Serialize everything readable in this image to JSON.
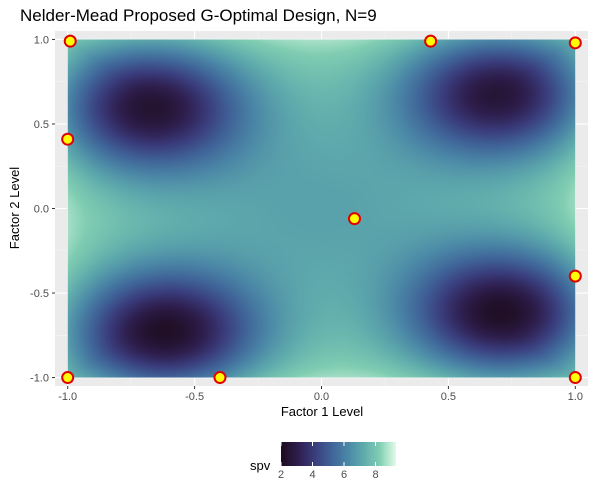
{
  "chart_data": {
    "type": "heatmap",
    "title": "Nelder-Mead Proposed G-Optimal Design, N=9",
    "xlabel": "Factor 1 Level",
    "ylabel": "Factor 2 Level",
    "xlim": [
      -1.05,
      1.05
    ],
    "ylim": [
      -1.05,
      1.05
    ],
    "x_ticks": [
      -1.0,
      -0.5,
      0.0,
      0.5,
      1.0
    ],
    "y_ticks": [
      -1.0,
      -0.5,
      0.0,
      0.5,
      1.0
    ],
    "x_tick_labels": [
      "-1.0",
      "-0.5",
      "0.0",
      "0.5",
      "1.0"
    ],
    "y_tick_labels": [
      "-1.0",
      "-0.5",
      "0.0",
      "0.5",
      "1.0"
    ],
    "grid": true,
    "legend": {
      "title": "spv",
      "placement": "bottom",
      "range": [
        2,
        9.3
      ],
      "ticks": [
        2,
        4,
        6,
        8
      ],
      "tick_labels": [
        "2",
        "4",
        "6",
        "8"
      ]
    },
    "colormap": [
      "#1e0c1f",
      "#2e1e4d",
      "#3a3c7c",
      "#3f6197",
      "#4a85a6",
      "#5eaaac",
      "#80cdb2",
      "#defbe8"
    ],
    "surface": {
      "baseline": 8.1,
      "minima": [
        {
          "x": -0.68,
          "y": 0.6,
          "value": 2.4
        },
        {
          "x": 0.7,
          "y": 0.68,
          "value": 2.5
        },
        {
          "x": -0.62,
          "y": -0.74,
          "value": 2.1
        },
        {
          "x": 0.72,
          "y": -0.62,
          "value": 2.1
        }
      ]
    },
    "design_points": [
      {
        "x": -0.99,
        "y": 0.99
      },
      {
        "x": 0.43,
        "y": 0.99
      },
      {
        "x": 1.0,
        "y": 0.98
      },
      {
        "x": -1.0,
        "y": 0.41
      },
      {
        "x": 0.13,
        "y": -0.06
      },
      {
        "x": 1.0,
        "y": -0.4
      },
      {
        "x": -1.0,
        "y": -1.0
      },
      {
        "x": -0.4,
        "y": -1.0
      },
      {
        "x": 1.0,
        "y": -1.0
      }
    ],
    "point_fill": "#ffff00",
    "point_stroke": "#e00000",
    "panel_background": "#ebebeb"
  }
}
